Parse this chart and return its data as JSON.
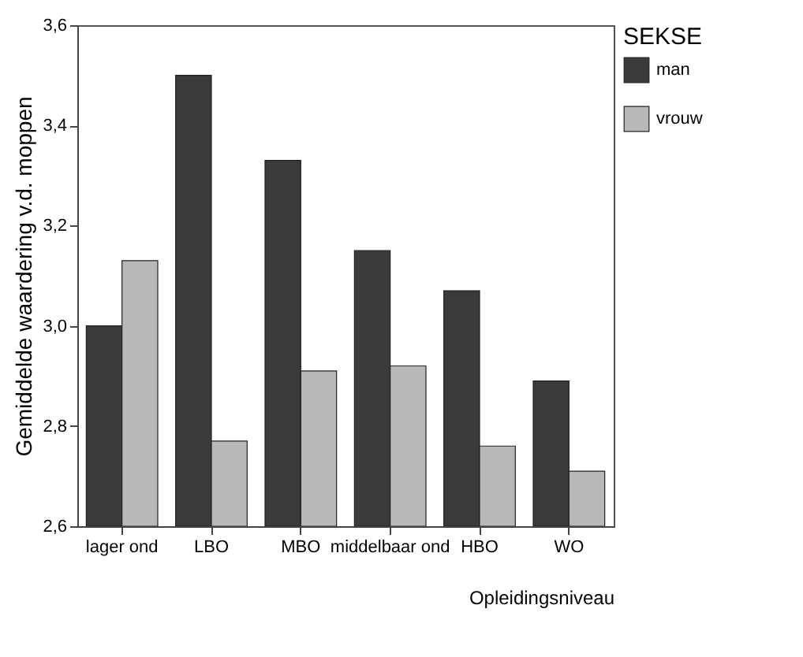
{
  "chart_data": {
    "type": "bar",
    "categories": [
      "lager ond",
      "LBO",
      "MBO",
      "middelbaar ond",
      "HBO",
      "WO"
    ],
    "series": [
      {
        "name": "man",
        "color": "#3a3a3a",
        "values": [
          3.0,
          3.5,
          3.33,
          3.15,
          3.07,
          2.89
        ]
      },
      {
        "name": "vrouw",
        "color": "#b8b8b8",
        "values": [
          3.13,
          2.77,
          2.91,
          2.92,
          2.76,
          2.71
        ]
      }
    ],
    "xlabel": "Opleidingsniveau",
    "ylabel": "Gemiddelde waardering v.d. moppen",
    "legend_title": "SEKSE",
    "ylim": [
      2.6,
      3.6
    ],
    "yticks": [
      {
        "value": 2.6,
        "label": "2,6"
      },
      {
        "value": 2.8,
        "label": "2,8"
      },
      {
        "value": 3.0,
        "label": "3,0"
      },
      {
        "value": 3.2,
        "label": "3,2"
      },
      {
        "value": 3.4,
        "label": "3,4"
      },
      {
        "value": 3.6,
        "label": "3,6"
      }
    ],
    "grid": false,
    "legend": "right"
  }
}
